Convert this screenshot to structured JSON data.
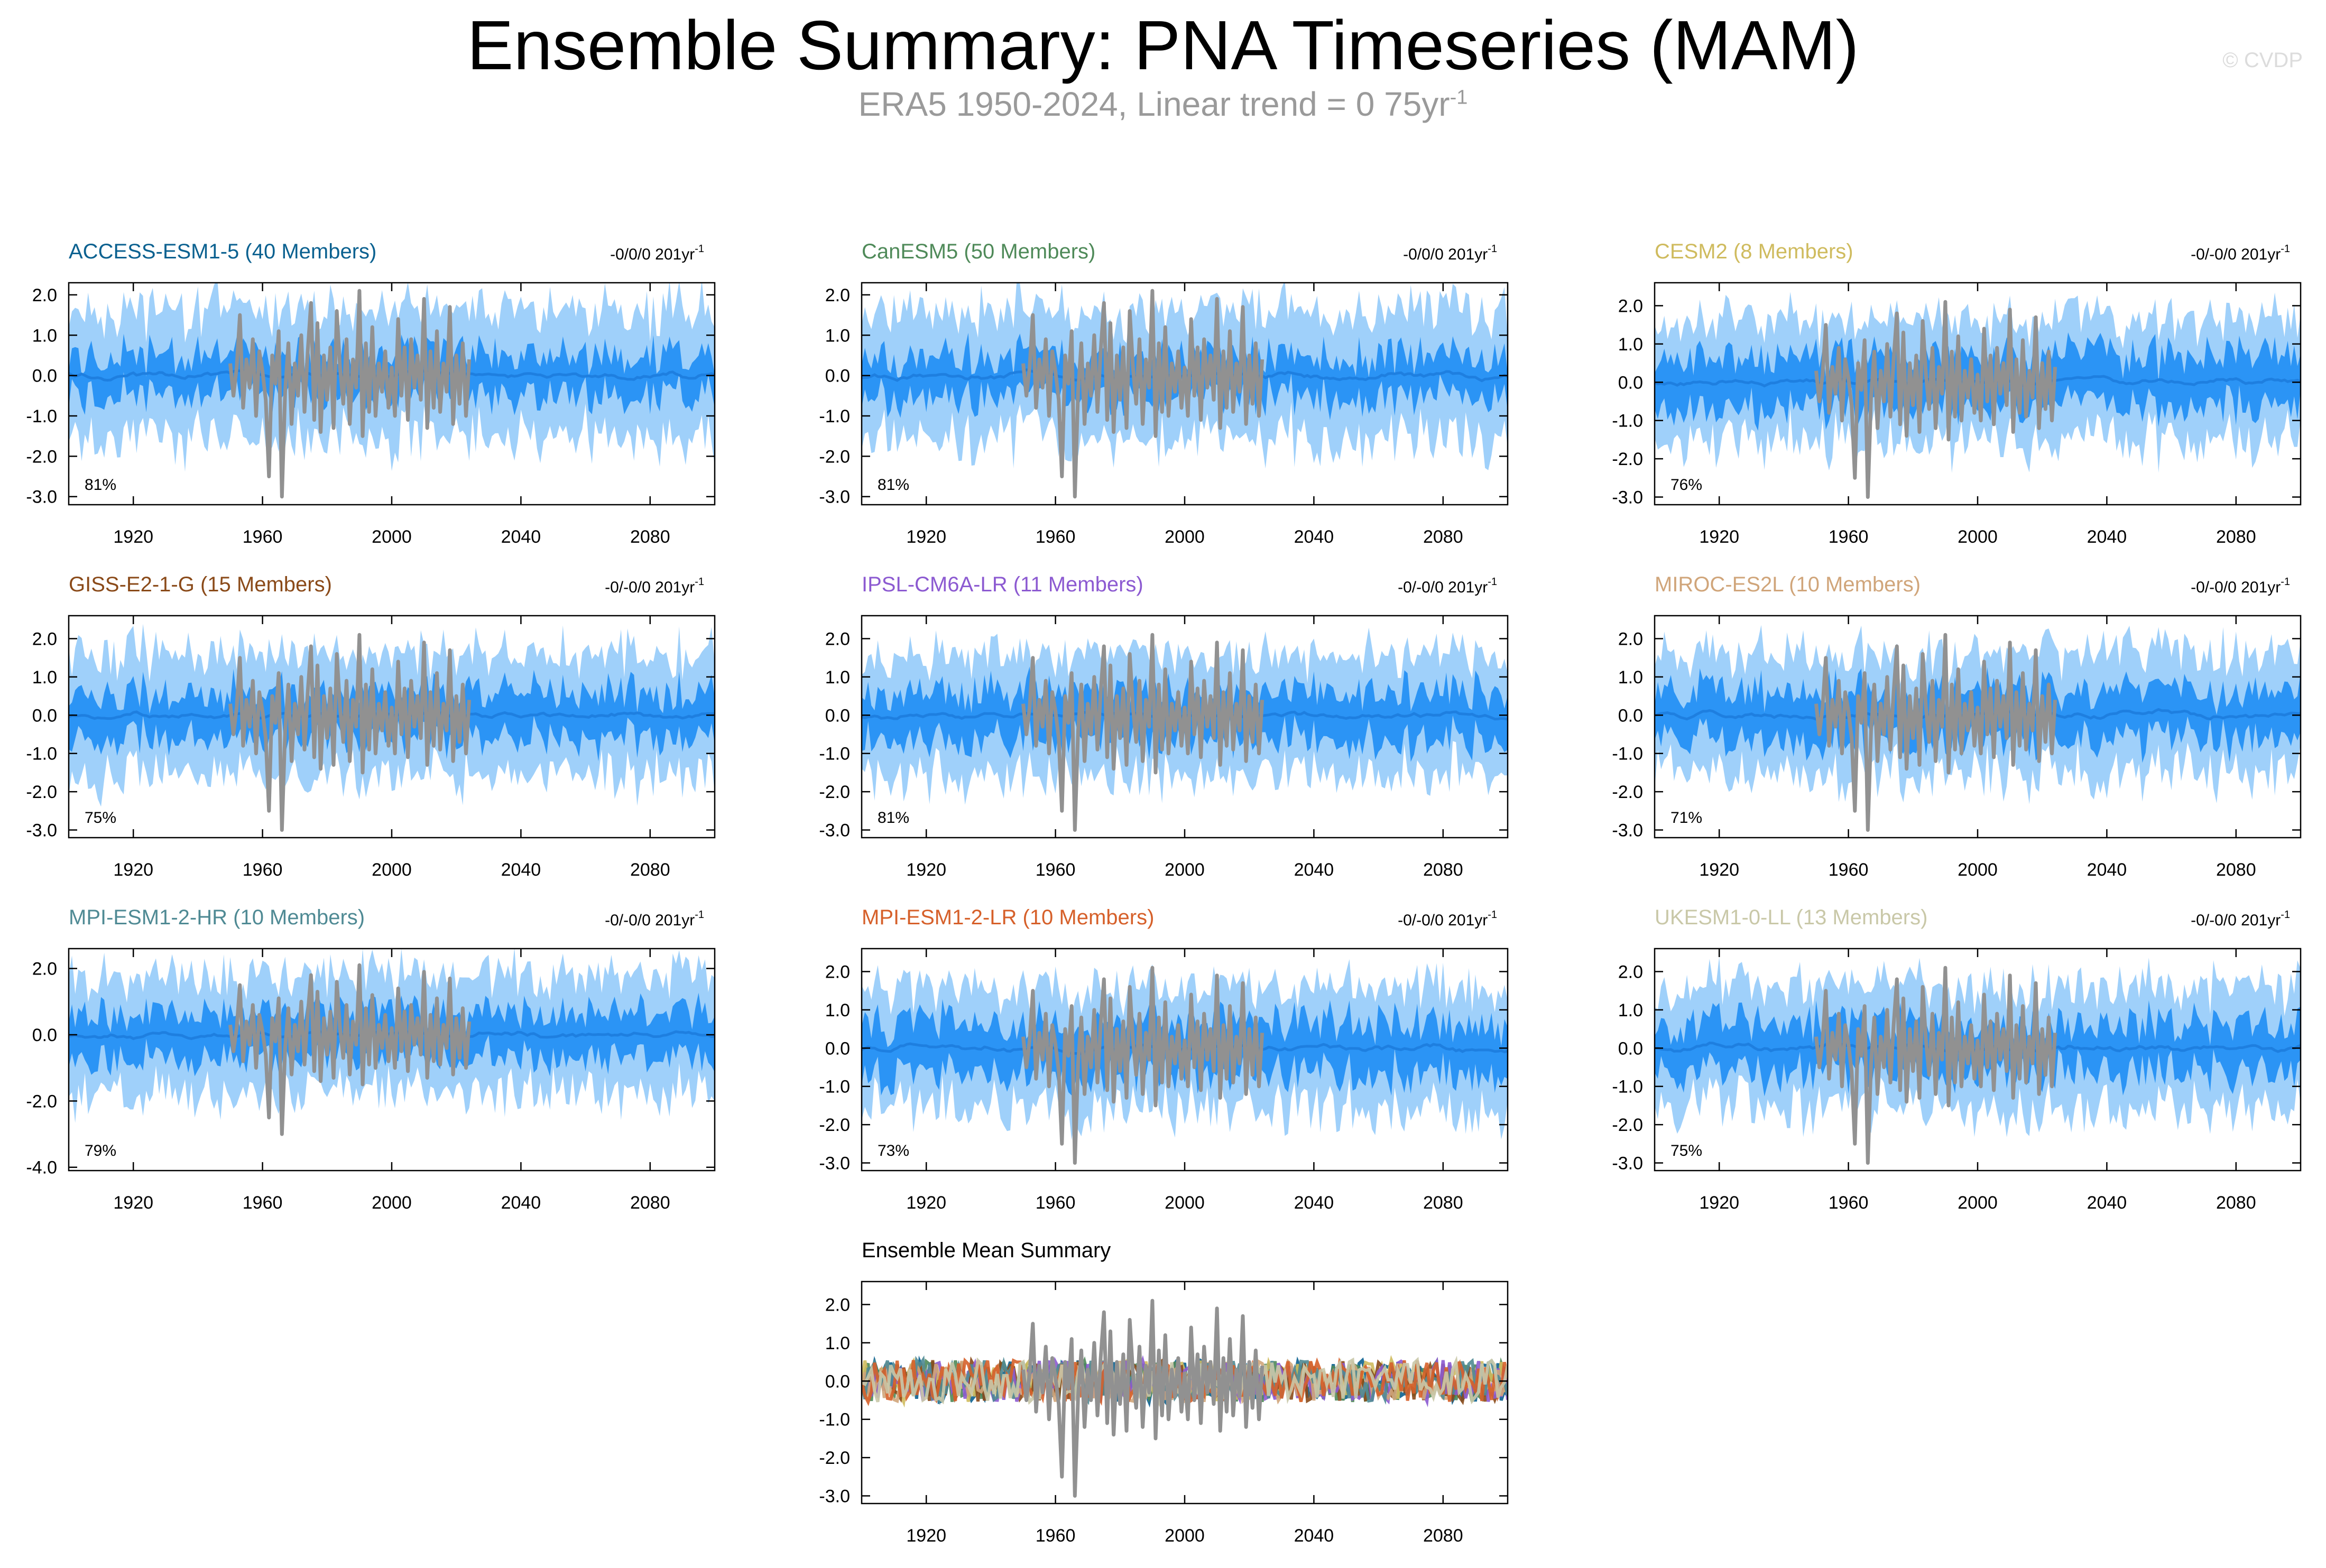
{
  "header": {
    "title": "Ensemble Summary: PNA Timeseries (MAM)",
    "subtitle_main": "ERA5 1950-2024, Linear trend = 0 75yr",
    "subtitle_sup": "-1",
    "watermark": "© CVDP"
  },
  "colors": {
    "outer_band": "#9fd0fa",
    "inner_band": "#2b94f5",
    "ensemble_mean": "#1e7fe0",
    "observations": "#919191"
  },
  "chart_data": [
    {
      "type": "area",
      "panel": "ACCESS-ESM1-5",
      "title": "ACCESS-ESM1-5 (40 Members)",
      "title_color": "#0b6190",
      "trend": "-0/0/0 201yr",
      "trend_sup": "-1",
      "percent": "81%",
      "ylim": [
        -3.2,
        2.3
      ],
      "yticks": [
        2,
        1,
        0,
        -1,
        -2,
        -3
      ],
      "ytick_labels": [
        "2.0",
        "1.0",
        "0.0",
        "-1.0",
        "-2.0",
        "-3.0"
      ],
      "xlim": [
        1900,
        2100
      ],
      "xticks": [
        1920,
        1960,
        2000,
        2040,
        2080
      ],
      "xtick_labels": [
        "1920",
        "1960",
        "2000",
        "2040",
        "2080"
      ],
      "outer": 1.3,
      "inner": 0.55,
      "seed": 11
    },
    {
      "type": "area",
      "panel": "CanESM5",
      "title": "CanESM5 (50 Members)",
      "title_color": "#4f8a59",
      "trend": "-0/0/0 201yr",
      "trend_sup": "-1",
      "percent": "81%",
      "ylim": [
        -3.2,
        2.3
      ],
      "yticks": [
        2,
        1,
        0,
        -1,
        -2,
        -3
      ],
      "ytick_labels": [
        "2.0",
        "1.0",
        "0.0",
        "-1.0",
        "-2.0",
        "-3.0"
      ],
      "xlim": [
        1900,
        2100
      ],
      "xticks": [
        1920,
        1960,
        2000,
        2040,
        2080
      ],
      "xtick_labels": [
        "1920",
        "1960",
        "2000",
        "2040",
        "2080"
      ],
      "outer": 1.3,
      "inner": 0.55,
      "seed": 23
    },
    {
      "type": "area",
      "panel": "CESM2",
      "title": "CESM2 (8 Members)",
      "title_color": "#cfbb5e",
      "trend": "-0/-0/0 201yr",
      "trend_sup": "-1",
      "percent": "76%",
      "ylim": [
        -3.2,
        2.6
      ],
      "yticks": [
        2,
        1,
        0,
        -1,
        -2,
        -3
      ],
      "ytick_labels": [
        "2.0",
        "1.0",
        "0.0",
        "-1.0",
        "-2.0",
        "-3.0"
      ],
      "xlim": [
        1900,
        2100
      ],
      "xticks": [
        1920,
        1960,
        2000,
        2040,
        2080
      ],
      "xtick_labels": [
        "1920",
        "1960",
        "2000",
        "2040",
        "2080"
      ],
      "outer": 1.3,
      "inner": 0.75,
      "seed": 37
    },
    {
      "type": "area",
      "panel": "GISS-E2-1-G",
      "title": "GISS-E2-1-G (15 Members)",
      "title_color": "#8a4a19",
      "trend": "-0/-0/0 201yr",
      "trend_sup": "-1",
      "percent": "75%",
      "ylim": [
        -3.2,
        2.6
      ],
      "yticks": [
        2,
        1,
        0,
        -1,
        -2,
        -3
      ],
      "ytick_labels": [
        "2.0",
        "1.0",
        "0.0",
        "-1.0",
        "-2.0",
        "-3.0"
      ],
      "xlim": [
        1900,
        2100
      ],
      "xticks": [
        1920,
        1960,
        2000,
        2040,
        2080
      ],
      "xtick_labels": [
        "1920",
        "1960",
        "2000",
        "2040",
        "2080"
      ],
      "outer": 1.3,
      "inner": 0.65,
      "seed": 41
    },
    {
      "type": "area",
      "panel": "IPSL-CM6A-LR",
      "title": "IPSL-CM6A-LR (11 Members)",
      "title_color": "#8c5ad1",
      "trend": "-0/-0/0 201yr",
      "trend_sup": "-1",
      "percent": "81%",
      "ylim": [
        -3.2,
        2.6
      ],
      "yticks": [
        2,
        1,
        0,
        -1,
        -2,
        -3
      ],
      "ytick_labels": [
        "2.0",
        "1.0",
        "0.0",
        "-1.0",
        "-2.0",
        "-3.0"
      ],
      "xlim": [
        1900,
        2100
      ],
      "xticks": [
        1920,
        1960,
        2000,
        2040,
        2080
      ],
      "xtick_labels": [
        "1920",
        "1960",
        "2000",
        "2040",
        "2080"
      ],
      "outer": 1.3,
      "inner": 0.7,
      "seed": 53
    },
    {
      "type": "area",
      "panel": "MIROC-ES2L",
      "title": "MIROC-ES2L (10 Members)",
      "title_color": "#d0a57a",
      "trend": "-0/-0/0 201yr",
      "trend_sup": "-1",
      "percent": "71%",
      "ylim": [
        -3.2,
        2.6
      ],
      "yticks": [
        2,
        1,
        0,
        -1,
        -2,
        -3
      ],
      "ytick_labels": [
        "2.0",
        "1.0",
        "0.0",
        "-1.0",
        "-2.0",
        "-3.0"
      ],
      "xlim": [
        1900,
        2100
      ],
      "xticks": [
        1920,
        1960,
        2000,
        2040,
        2080
      ],
      "xtick_labels": [
        "1920",
        "1960",
        "2000",
        "2040",
        "2080"
      ],
      "outer": 1.3,
      "inner": 0.7,
      "seed": 67
    },
    {
      "type": "area",
      "panel": "MPI-ESM1-2-HR",
      "title": "MPI-ESM1-2-HR (10 Members)",
      "title_color": "#4f8a94",
      "trend": "-0/-0/0 201yr",
      "trend_sup": "-1",
      "percent": "79%",
      "ylim": [
        -4.1,
        2.6
      ],
      "yticks": [
        2,
        0,
        -2,
        -4
      ],
      "ytick_labels": [
        "2.0",
        "0.0",
        "-2.0",
        "-4.0"
      ],
      "xlim": [
        1900,
        2100
      ],
      "xticks": [
        1920,
        1960,
        2000,
        2040,
        2080
      ],
      "xtick_labels": [
        "1920",
        "1960",
        "2000",
        "2040",
        "2080"
      ],
      "outer": 1.5,
      "inner": 0.75,
      "seed": 71
    },
    {
      "type": "area",
      "panel": "MPI-ESM1-2-LR",
      "title": "MPI-ESM1-2-LR (10 Members)",
      "title_color": "#d6602a",
      "trend": "-0/-0/0 201yr",
      "trend_sup": "-1",
      "percent": "73%",
      "ylim": [
        -3.2,
        2.6
      ],
      "yticks": [
        2,
        1,
        0,
        -1,
        -2,
        -3
      ],
      "ytick_labels": [
        "2.0",
        "1.0",
        "0.0",
        "-1.0",
        "-2.0",
        "-3.0"
      ],
      "xlim": [
        1900,
        2100
      ],
      "xticks": [
        1920,
        1960,
        2000,
        2040,
        2080
      ],
      "xtick_labels": [
        "1920",
        "1960",
        "2000",
        "2040",
        "2080"
      ],
      "outer": 1.3,
      "inner": 0.75,
      "seed": 83
    },
    {
      "type": "area",
      "panel": "UKESM1-0-LL",
      "title": "UKESM1-0-LL (13 Members)",
      "title_color": "#c9c8a8",
      "trend": "-0/-0/0 201yr",
      "trend_sup": "-1",
      "percent": "75%",
      "ylim": [
        -3.2,
        2.6
      ],
      "yticks": [
        2,
        1,
        0,
        -1,
        -2,
        -3
      ],
      "ytick_labels": [
        "2.0",
        "1.0",
        "0.0",
        "-1.0",
        "-2.0",
        "-3.0"
      ],
      "xlim": [
        1900,
        2100
      ],
      "xticks": [
        1920,
        1960,
        2000,
        2040,
        2080
      ],
      "xtick_labels": [
        "1920",
        "1960",
        "2000",
        "2040",
        "2080"
      ],
      "outer": 1.3,
      "inner": 0.7,
      "seed": 97
    },
    {
      "type": "line",
      "panel": "Ensemble Mean Summary",
      "title": "Ensemble Mean Summary",
      "title_color": "#000000",
      "trend": "",
      "trend_sup": "",
      "percent": "",
      "ylim": [
        -3.2,
        2.6
      ],
      "yticks": [
        2,
        1,
        0,
        -1,
        -2,
        -3
      ],
      "ytick_labels": [
        "2.0",
        "1.0",
        "0.0",
        "-1.0",
        "-2.0",
        "-3.0"
      ],
      "xlim": [
        1900,
        2100
      ],
      "xticks": [
        1920,
        1960,
        2000,
        2040,
        2080
      ],
      "xtick_labels": [
        "1920",
        "1960",
        "2000",
        "2040",
        "2080"
      ],
      "series": [
        {
          "name": "ACCESS-ESM1-5",
          "color": "#0b6190",
          "seed": 11
        },
        {
          "name": "CanESM5",
          "color": "#4f8a59",
          "seed": 23
        },
        {
          "name": "CESM2",
          "color": "#cfbb5e",
          "seed": 37
        },
        {
          "name": "GISS-E2-1-G",
          "color": "#8a4a19",
          "seed": 41
        },
        {
          "name": "IPSL-CM6A-LR",
          "color": "#8c5ad1",
          "seed": 53
        },
        {
          "name": "MIROC-ES2L",
          "color": "#d0a57a",
          "seed": 67
        },
        {
          "name": "MPI-ESM1-2-HR",
          "color": "#4f8a94",
          "seed": 71
        },
        {
          "name": "MPI-ESM1-2-LR",
          "color": "#d6602a",
          "seed": 83
        },
        {
          "name": "UKESM1-0-LL",
          "color": "#c9c8a8",
          "seed": 97
        }
      ]
    }
  ],
  "observations": {
    "name": "ERA5",
    "years": [
      1950,
      1951,
      1952,
      1953,
      1954,
      1955,
      1956,
      1957,
      1958,
      1959,
      1960,
      1961,
      1962,
      1963,
      1964,
      1965,
      1966,
      1967,
      1968,
      1969,
      1970,
      1971,
      1972,
      1973,
      1974,
      1975,
      1976,
      1977,
      1978,
      1979,
      1980,
      1981,
      1982,
      1983,
      1984,
      1985,
      1986,
      1987,
      1988,
      1989,
      1990,
      1991,
      1992,
      1993,
      1994,
      1995,
      1996,
      1997,
      1998,
      1999,
      2000,
      2001,
      2002,
      2003,
      2004,
      2005,
      2006,
      2007,
      2008,
      2009,
      2010,
      2011,
      2012,
      2013,
      2014,
      2015,
      2016,
      2017,
      2018,
      2019,
      2020,
      2021,
      2022,
      2023,
      2024
    ],
    "values": [
      0.3,
      -0.5,
      0.2,
      1.5,
      -0.8,
      0.4,
      -0.3,
      0.9,
      -1.0,
      0.6,
      0.1,
      -0.6,
      -2.5,
      0.5,
      -0.2,
      1.1,
      -3.0,
      -0.4,
      0.8,
      -1.2,
      0.3,
      -0.5,
      1.0,
      -0.9,
      0.6,
      1.8,
      -1.1,
      1.3,
      -1.4,
      0.5,
      -0.6,
      0.7,
      -1.3,
      1.6,
      0.2,
      -0.7,
      0.9,
      -1.2,
      0.4,
      -0.3,
      2.1,
      -1.5,
      0.8,
      -0.9,
      1.2,
      -1.0,
      0.3,
      -0.4,
      0.6,
      -0.8,
      0.2,
      -1.0,
      1.4,
      -0.5,
      0.7,
      -1.1,
      0.9,
      -0.3,
      0.5,
      -0.6,
      1.9,
      -1.3,
      0.6,
      -0.8,
      1.1,
      -0.9,
      0.3,
      -0.4,
      1.7,
      -1.2,
      0.5,
      -0.7,
      0.8,
      -1.0,
      0.4
    ]
  }
}
